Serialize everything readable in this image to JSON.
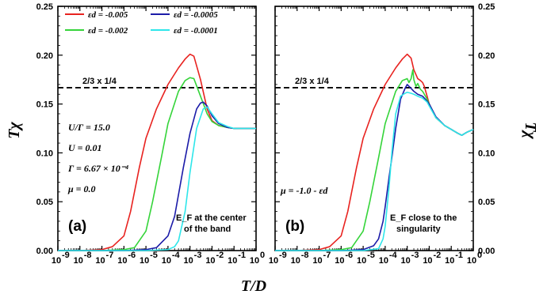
{
  "chart_data": [
    {
      "panel": "(a)",
      "type": "line",
      "xscale": "log",
      "xlim": [
        1e-09,
        1
      ],
      "ylim": [
        0,
        0.25
      ],
      "xlabel": "T/D",
      "ylabel": "Tχ",
      "yticks": [
        "0.00",
        "0.05",
        "0.10",
        "0.15",
        "0.20",
        "0.25"
      ],
      "xticks": [
        "-9",
        "-8",
        "-7",
        "-6",
        "-5",
        "-4",
        "-3",
        "-2",
        "-1",
        "0"
      ],
      "reference_line": {
        "y": 0.1667,
        "label": "2/3 x 1/4",
        "style": "dashed"
      },
      "annotations": [
        "U/Γ = 15.0",
        "U = 0.01",
        "Γ = 6.67 × 10⁻⁴",
        "μ = 0.0"
      ],
      "caption_lines": [
        "E_F at the center",
        "of the band"
      ],
      "legend": [
        {
          "label": "εd = -0.005",
          "color": "#e8221f"
        },
        {
          "label": "εd = -0.002",
          "color": "#35d43a"
        },
        {
          "label": "εd = -0.0005",
          "color": "#1b1ba8"
        },
        {
          "label": "εd = -0.0001",
          "color": "#2ee6ea"
        }
      ],
      "series": [
        {
          "color": "#e8221f",
          "x": [
            1e-09,
            1e-08,
            1e-07,
            3e-07,
            1e-06,
            2e-06,
            5e-06,
            1e-05,
            3e-05,
            0.0001,
            0.0003,
            0.0006,
            0.001,
            0.0015,
            0.003,
            0.006,
            0.01,
            0.02,
            0.05,
            0.1,
            0.2,
            0.5,
            1
          ],
          "y": [
            0,
            0,
            0.001,
            0.004,
            0.015,
            0.04,
            0.085,
            0.115,
            0.145,
            0.17,
            0.187,
            0.196,
            0.201,
            0.199,
            0.175,
            0.145,
            0.133,
            0.128,
            0.126,
            0.125,
            0.125,
            0.125,
            0.125
          ]
        },
        {
          "color": "#35d43a",
          "x": [
            1e-09,
            1e-07,
            1e-06,
            3e-06,
            1e-05,
            2e-05,
            5e-05,
            0.0001,
            0.0003,
            0.0006,
            0.001,
            0.0015,
            0.003,
            0.006,
            0.01,
            0.02,
            0.05,
            0.1,
            0.2,
            0.5,
            1
          ],
          "y": [
            0,
            0,
            0.001,
            0.003,
            0.02,
            0.05,
            0.095,
            0.13,
            0.163,
            0.174,
            0.177,
            0.176,
            0.158,
            0.14,
            0.132,
            0.128,
            0.126,
            0.125,
            0.125,
            0.125,
            0.125
          ]
        },
        {
          "color": "#1b1ba8",
          "x": [
            1e-09,
            1e-06,
            1e-05,
            3e-05,
            0.0001,
            0.0002,
            0.0005,
            0.001,
            0.002,
            0.003,
            0.004,
            0.006,
            0.01,
            0.02,
            0.05,
            0.1,
            0.2,
            0.5,
            1
          ],
          "y": [
            0,
            0,
            0.001,
            0.003,
            0.015,
            0.035,
            0.085,
            0.12,
            0.145,
            0.151,
            0.152,
            0.148,
            0.138,
            0.13,
            0.126,
            0.125,
            0.125,
            0.125,
            0.125
          ]
        },
        {
          "color": "#2ee6ea",
          "x": [
            1e-09,
            1e-06,
            1e-05,
            0.0001,
            0.0002,
            0.0003,
            0.0006,
            0.001,
            0.002,
            0.004,
            0.006,
            0.01,
            0.02,
            0.05,
            0.1,
            0.2,
            0.5,
            1
          ],
          "y": [
            0,
            0,
            0,
            0.001,
            0.004,
            0.01,
            0.04,
            0.08,
            0.125,
            0.145,
            0.147,
            0.14,
            0.131,
            0.127,
            0.125,
            0.125,
            0.125,
            0.125
          ]
        }
      ]
    },
    {
      "panel": "(b)",
      "type": "line",
      "xscale": "log",
      "xlim": [
        1e-09,
        1
      ],
      "ylim": [
        0,
        0.25
      ],
      "xlabel": "T/D",
      "ylabel": "Tχ",
      "yticks": [
        "0.00",
        "0.05",
        "0.10",
        "0.15",
        "0.20",
        "0.25"
      ],
      "xticks": [
        "-9",
        "-8",
        "-7",
        "-6",
        "-5",
        "-4",
        "-3",
        "-2",
        "-1",
        "0"
      ],
      "reference_line": {
        "y": 0.1667,
        "label": "2/3 x 1/4",
        "style": "dashed"
      },
      "annotations": [
        "μ = -1.0 - εd"
      ],
      "caption_lines": [
        "E_F close to the",
        "singularity"
      ],
      "series": [
        {
          "color": "#e8221f",
          "x": [
            1e-09,
            1e-08,
            1e-07,
            3e-07,
            1e-06,
            2e-06,
            5e-06,
            1e-05,
            3e-05,
            0.0001,
            0.0003,
            0.0006,
            0.001,
            0.0015,
            0.002,
            0.003,
            0.004,
            0.005,
            0.006,
            0.008,
            0.01,
            0.02,
            0.05,
            0.1,
            0.2,
            0.3,
            0.5,
            1
          ],
          "y": [
            0,
            0,
            0.001,
            0.004,
            0.015,
            0.04,
            0.085,
            0.115,
            0.145,
            0.17,
            0.187,
            0.196,
            0.201,
            0.197,
            0.185,
            0.176,
            0.174,
            0.172,
            0.168,
            0.158,
            0.15,
            0.136,
            0.128,
            0.124,
            0.12,
            0.118,
            0.121,
            0.124
          ]
        },
        {
          "color": "#35d43a",
          "x": [
            1e-09,
            1e-07,
            1e-06,
            3e-06,
            1e-05,
            2e-05,
            5e-05,
            0.0001,
            0.0003,
            0.0006,
            0.001,
            0.0012,
            0.0015,
            0.0018,
            0.002,
            0.0025,
            0.003,
            0.004,
            0.005,
            0.006,
            0.008,
            0.01,
            0.02,
            0.05,
            0.1,
            0.2,
            0.3,
            0.5,
            1
          ],
          "y": [
            0,
            0,
            0.001,
            0.003,
            0.02,
            0.05,
            0.095,
            0.13,
            0.163,
            0.174,
            0.176,
            0.172,
            0.176,
            0.185,
            0.175,
            0.168,
            0.171,
            0.165,
            0.163,
            0.16,
            0.155,
            0.15,
            0.136,
            0.128,
            0.124,
            0.12,
            0.118,
            0.121,
            0.124
          ]
        },
        {
          "color": "#1b1ba8",
          "x": [
            1e-09,
            1e-06,
            1e-05,
            3e-05,
            5e-05,
            8e-05,
            0.0001,
            0.00015,
            0.0002,
            0.0003,
            0.0005,
            0.0008,
            0.001,
            0.0015,
            0.002,
            0.003,
            0.005,
            0.008,
            0.01,
            0.02,
            0.05,
            0.1,
            0.2,
            0.3,
            0.5,
            1
          ],
          "y": [
            0,
            0,
            0.001,
            0.005,
            0.012,
            0.03,
            0.045,
            0.075,
            0.095,
            0.125,
            0.155,
            0.166,
            0.17,
            0.166,
            0.163,
            0.16,
            0.158,
            0.153,
            0.15,
            0.137,
            0.128,
            0.124,
            0.12,
            0.118,
            0.121,
            0.124
          ]
        },
        {
          "color": "#2ee6ea",
          "x": [
            1e-09,
            1e-06,
            1e-05,
            5e-05,
            8e-05,
            0.0001,
            0.00015,
            0.0002,
            0.0003,
            0.0005,
            0.0008,
            0.001,
            0.0015,
            0.002,
            0.003,
            0.005,
            0.008,
            0.01,
            0.02,
            0.05,
            0.1,
            0.2,
            0.3,
            0.5,
            1
          ],
          "y": [
            0,
            0,
            0,
            0.002,
            0.012,
            0.025,
            0.065,
            0.1,
            0.14,
            0.158,
            0.161,
            0.162,
            0.161,
            0.16,
            0.158,
            0.156,
            0.152,
            0.148,
            0.136,
            0.128,
            0.124,
            0.12,
            0.118,
            0.121,
            0.124
          ]
        }
      ]
    }
  ]
}
